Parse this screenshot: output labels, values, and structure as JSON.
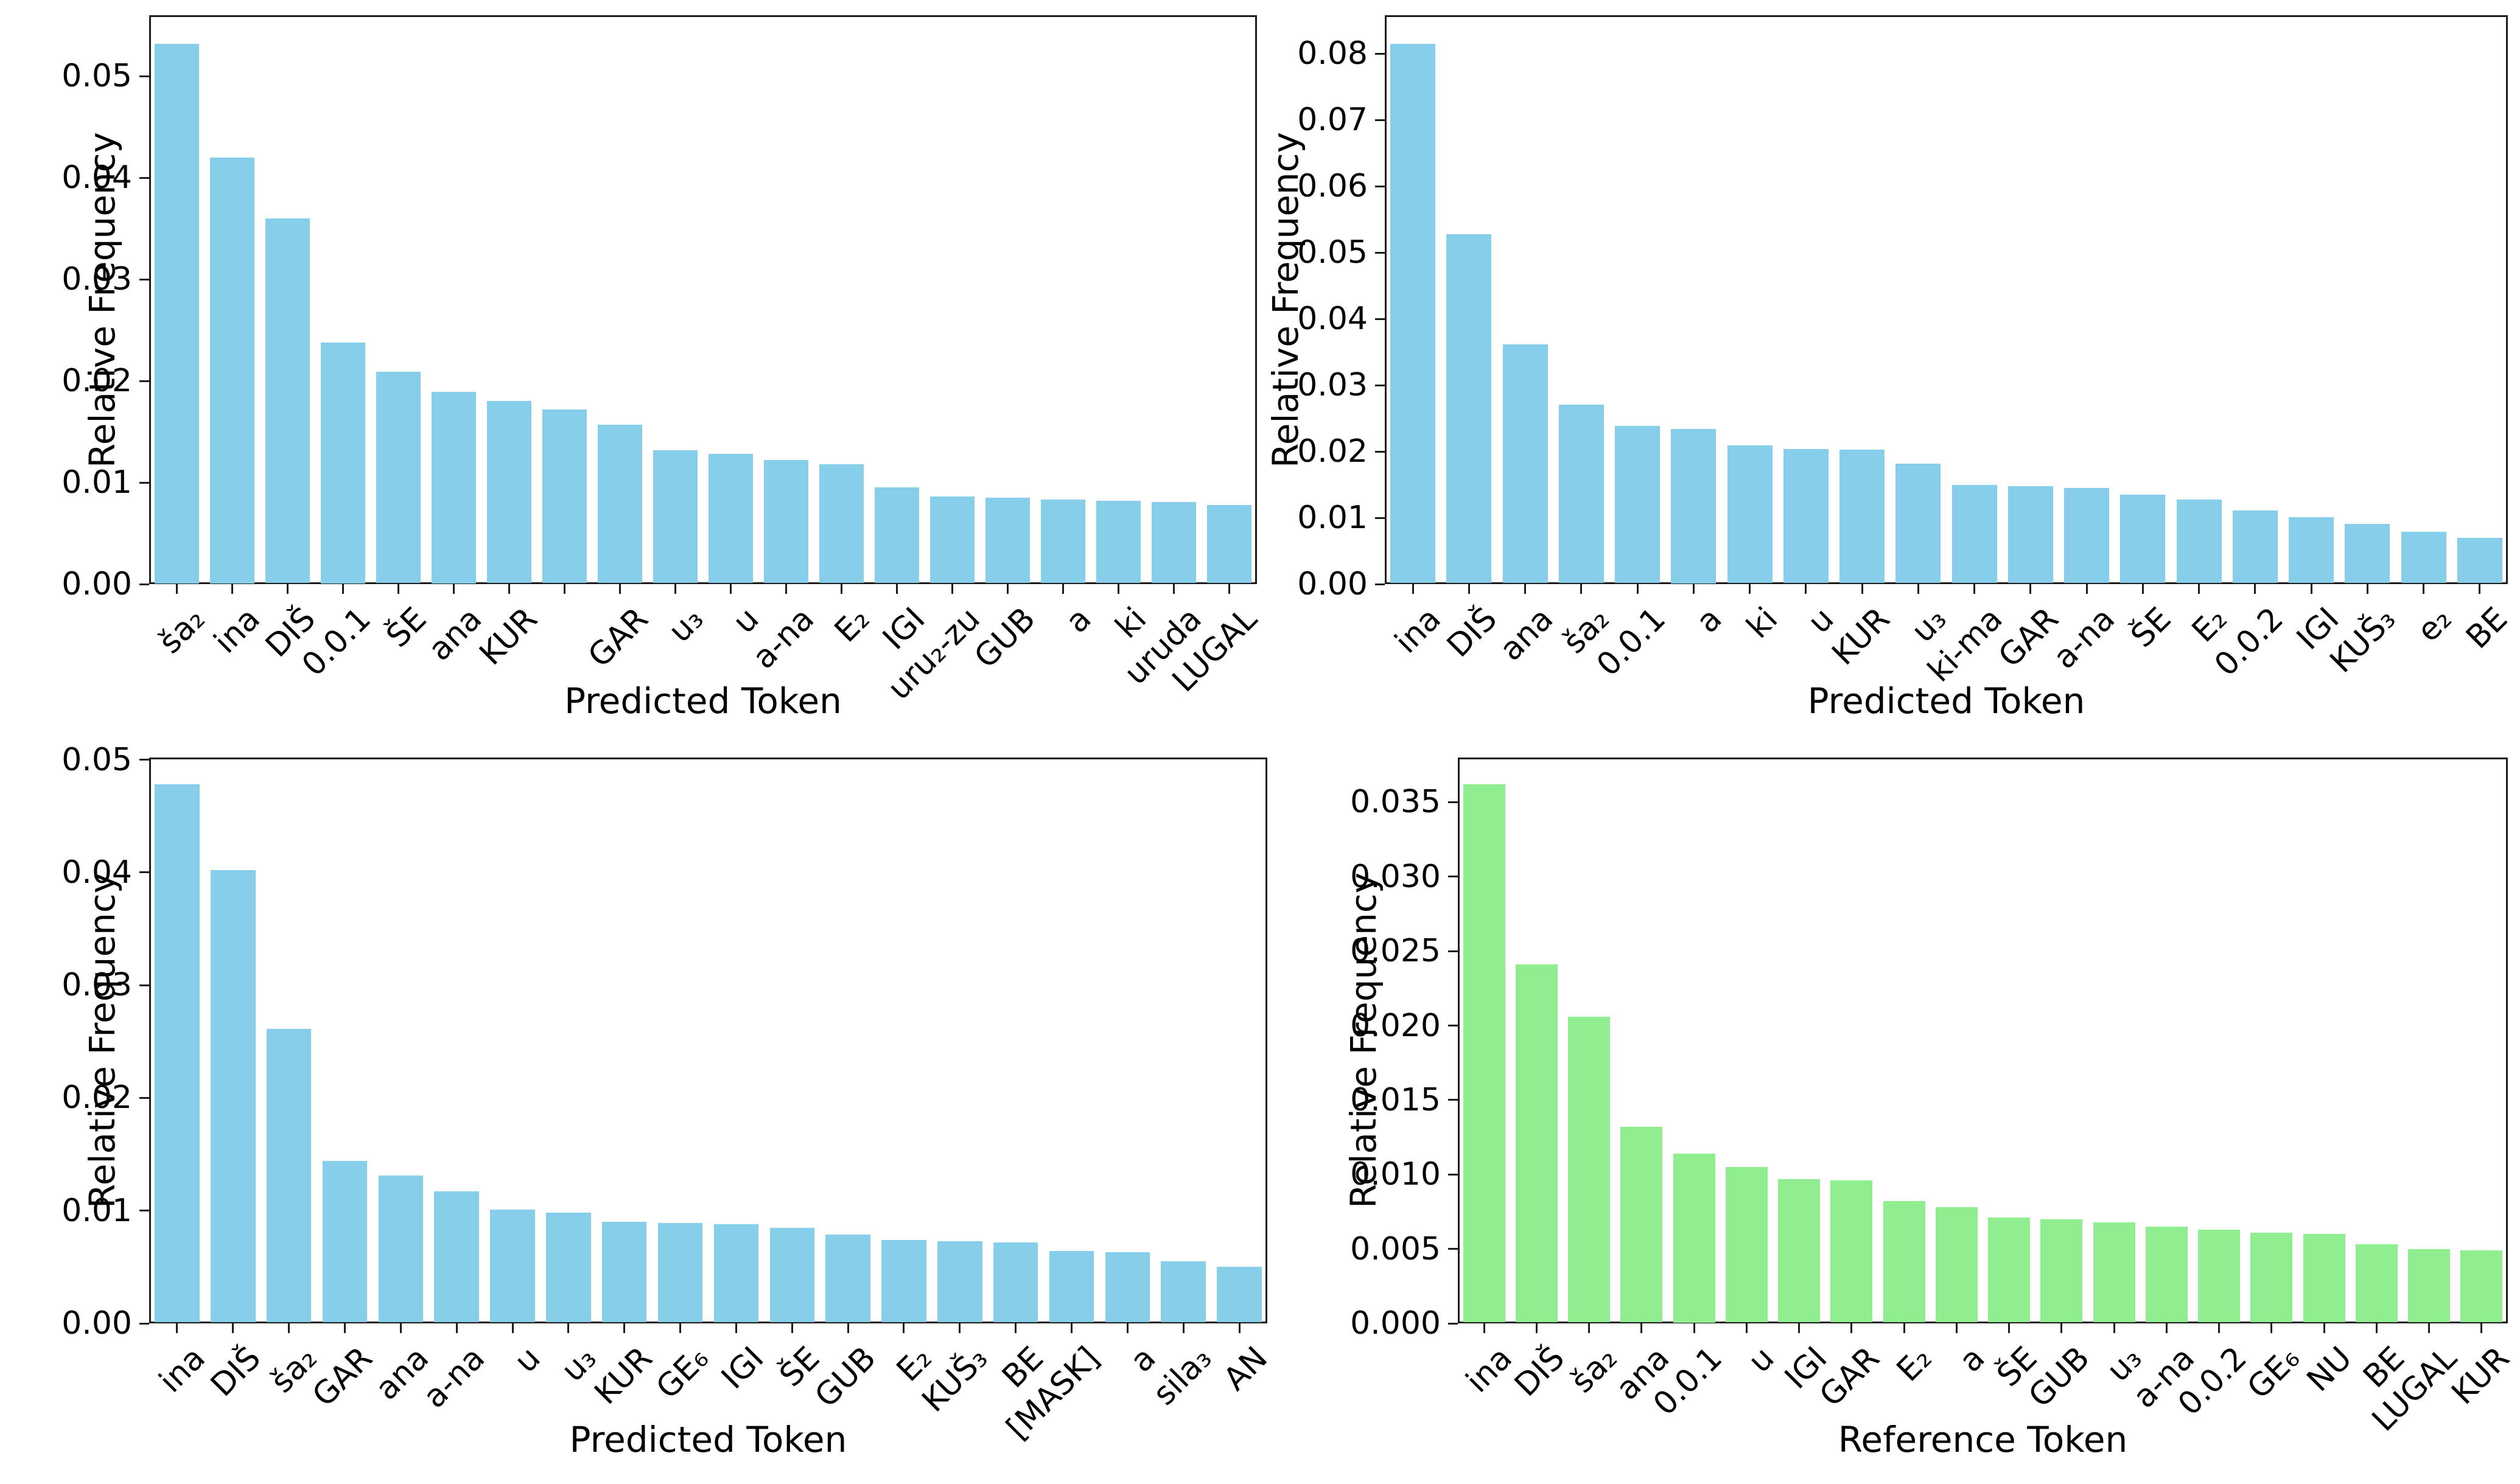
{
  "figure": {
    "background_color": "#ffffff",
    "text_color": "#000000",
    "spine_color": "#1c1c1c",
    "skyblue_color": "#87CEEB",
    "lightgreen_color": "#90EE90"
  },
  "chart_data": [
    {
      "id": "top-left",
      "type": "bar",
      "title": "",
      "xlabel": "Predicted Token",
      "ylabel": "Relative Frequency",
      "bar_color": "#87CEEB",
      "legend": "none",
      "grid": false,
      "ylim": [
        0,
        0.056
      ],
      "yticks": [
        "0.00",
        "0.01",
        "0.02",
        "0.03",
        "0.04",
        "0.05"
      ],
      "categories": [
        "ša₂",
        "ina",
        "DIŠ",
        "0.0.1",
        "ŠE",
        "ana",
        "KUR",
        "",
        "GAR",
        "u₃",
        "u",
        "a-na",
        "E₂",
        "IGI",
        "uru₂-zu",
        "GUB",
        "a",
        "ki",
        "uruda",
        "LUGAL"
      ],
      "values": [
        0.0532,
        0.042,
        0.036,
        0.0238,
        0.0209,
        0.0189,
        0.018,
        0.0172,
        0.0157,
        0.0132,
        0.0128,
        0.0122,
        0.0118,
        0.0095,
        0.0086,
        0.0085,
        0.0083,
        0.0082,
        0.0081,
        0.0078
      ]
    },
    {
      "id": "top-right",
      "type": "bar",
      "title": "",
      "xlabel": "Predicted Token",
      "ylabel": "Relative Frequency",
      "bar_color": "#87CEEB",
      "legend": "none",
      "grid": false,
      "ylim": [
        0,
        0.0858
      ],
      "yticks": [
        "0.00",
        "0.01",
        "0.02",
        "0.03",
        "0.04",
        "0.05",
        "0.06",
        "0.07",
        "0.08"
      ],
      "categories": [
        "ina",
        "DIŠ",
        "ana",
        "ša₂",
        "0.0.1",
        "a",
        "ki",
        "u",
        "KUR",
        "u₃",
        "ki-ma",
        "GAR",
        "a-na",
        "ŠE",
        "E₂",
        "0.0.2",
        "IGI",
        "KUŠ₃",
        "e₂",
        "BE"
      ],
      "values": [
        0.0815,
        0.0528,
        0.0362,
        0.0271,
        0.0239,
        0.0234,
        0.0209,
        0.0204,
        0.0203,
        0.0182,
        0.015,
        0.0148,
        0.0145,
        0.0135,
        0.0128,
        0.0111,
        0.0101,
        0.0091,
        0.0079,
        0.007
      ]
    },
    {
      "id": "bottom-left",
      "type": "bar",
      "title": "",
      "xlabel": "Predicted Token",
      "ylabel": "Relative Frequency",
      "bar_color": "#87CEEB",
      "legend": "none",
      "grid": false,
      "ylim": [
        0,
        0.0502
      ],
      "yticks": [
        "0.00",
        "0.01",
        "0.02",
        "0.03",
        "0.04",
        "0.05"
      ],
      "categories": [
        "ina",
        "DIŠ",
        "ša₂",
        "GAR",
        "ana",
        "a-na",
        "u",
        "u₃",
        "KUR",
        "GE₆",
        "IGI",
        "ŠE",
        "GUB",
        "E₂",
        "KUŠ₃",
        "BE",
        "[MASK]",
        "a",
        "sila₃",
        "AN"
      ],
      "values": [
        0.0478,
        0.0402,
        0.0261,
        0.0144,
        0.0131,
        0.0117,
        0.0101,
        0.0098,
        0.009,
        0.0089,
        0.0088,
        0.0085,
        0.0079,
        0.0074,
        0.0073,
        0.0072,
        0.0064,
        0.0063,
        0.0055,
        0.005
      ]
    },
    {
      "id": "bottom-right",
      "type": "bar",
      "title": "",
      "xlabel": "Reference Token",
      "ylabel": "Relative Frequency",
      "bar_color": "#90EE90",
      "legend": "none",
      "grid": false,
      "ylim": [
        0,
        0.038
      ],
      "yticks": [
        "0.000",
        "0.005",
        "0.010",
        "0.015",
        "0.020",
        "0.025",
        "0.030",
        "0.035"
      ],
      "categories": [
        "ina",
        "DIŠ",
        "ša₂",
        "ana",
        "0.0.1",
        "u",
        "IGI",
        "GAR",
        "E₂",
        "a",
        "ŠE",
        "GUB",
        "u₃",
        "a-na",
        "0.0.2",
        "GE₆",
        "NU",
        "BE",
        "LUGAL",
        "KUR"
      ],
      "values": [
        0.0362,
        0.0241,
        0.0206,
        0.0132,
        0.0114,
        0.0105,
        0.0097,
        0.0096,
        0.0082,
        0.0078,
        0.0071,
        0.007,
        0.0068,
        0.0065,
        0.0063,
        0.0061,
        0.006,
        0.0053,
        0.005,
        0.0049
      ]
    }
  ]
}
